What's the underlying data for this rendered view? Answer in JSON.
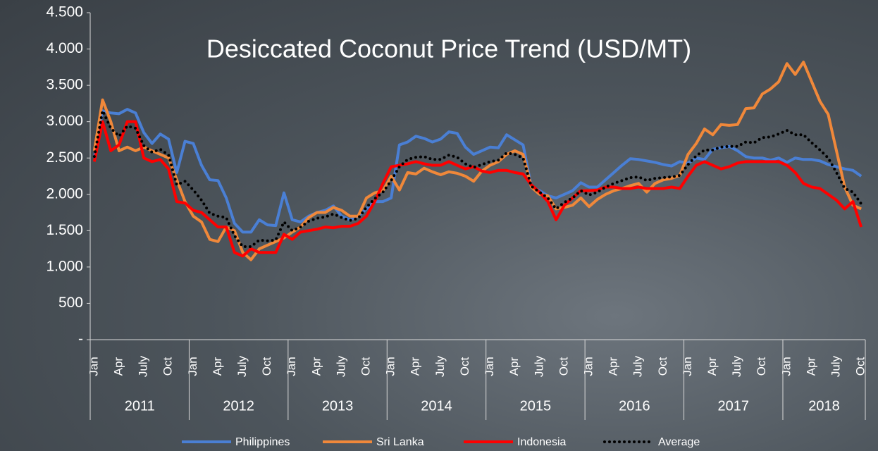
{
  "chart_data": {
    "type": "line",
    "title": "Desiccated Coconut Price Trend (USD/MT)",
    "categories": [
      "Jan",
      null,
      null,
      "Apr",
      null,
      null,
      "July",
      null,
      null,
      "Oct",
      null,
      null,
      "Jan",
      null,
      null,
      "Apr",
      null,
      null,
      "July",
      null,
      null,
      "Oct",
      null,
      null,
      "Jan",
      null,
      null,
      "Apr",
      null,
      null,
      "July",
      null,
      null,
      "Oct",
      null,
      null,
      "Jan",
      null,
      null,
      "Apr",
      null,
      null,
      "July",
      null,
      null,
      "Oct",
      null,
      null,
      "Jan",
      null,
      null,
      "Apr",
      null,
      null,
      "July",
      null,
      null,
      "Oct",
      null,
      null,
      "Jan",
      null,
      null,
      "Apr",
      null,
      null,
      "July",
      null,
      null,
      "Oct",
      null,
      null,
      "Jan",
      null,
      null,
      "Apr",
      null,
      null,
      "July",
      null,
      null,
      "Oct",
      null,
      null,
      "Jan",
      null,
      null,
      "Apr",
      null,
      null,
      "July",
      null,
      null,
      "Oct"
    ],
    "years": [
      "2011",
      "2012",
      "2013",
      "2014",
      "2015",
      "2016",
      "2017",
      "2018"
    ],
    "ylim": [
      0,
      4500
    ],
    "yticks": [
      {
        "value": 0,
        "label": "-"
      },
      {
        "value": 500,
        "label": "500"
      },
      {
        "value": 1000,
        "label": "1.000"
      },
      {
        "value": 1500,
        "label": "1.500"
      },
      {
        "value": 2000,
        "label": "2.000"
      },
      {
        "value": 2500,
        "label": "2.500"
      },
      {
        "value": 3000,
        "label": "3.000"
      },
      {
        "value": 3500,
        "label": "3.500"
      },
      {
        "value": 4000,
        "label": "4.000"
      },
      {
        "value": 4500,
        "label": "4.500"
      }
    ],
    "series": [
      {
        "name": "Philippines",
        "color": "#4a7fd4",
        "style": "solid",
        "values": [
          2500,
          3150,
          3120,
          3110,
          3170,
          3120,
          2850,
          2700,
          2830,
          2760,
          2300,
          2730,
          2700,
          2400,
          2200,
          2190,
          1950,
          1600,
          1480,
          1480,
          1650,
          1580,
          1570,
          2020,
          1650,
          1620,
          1700,
          1750,
          1780,
          1840,
          1700,
          1650,
          1700,
          1800,
          1900,
          1900,
          1950,
          2680,
          2720,
          2800,
          2770,
          2720,
          2760,
          2860,
          2840,
          2650,
          2550,
          2600,
          2650,
          2640,
          2820,
          2750,
          2680,
          2100,
          2050,
          1980,
          1950,
          2000,
          2050,
          2160,
          2100,
          2100,
          2200,
          2300,
          2400,
          2490,
          2480,
          2460,
          2440,
          2410,
          2390,
          2450,
          2430,
          2500,
          2480,
          2620,
          2640,
          2660,
          2600,
          2520,
          2500,
          2500,
          2470,
          2500,
          2440,
          2500,
          2480,
          2480,
          2460,
          2410,
          2380,
          2350,
          2330,
          2250
        ]
      },
      {
        "name": "Sri Lanka",
        "color": "#f0883a",
        "style": "solid",
        "values": [
          2600,
          3300,
          3000,
          2600,
          2650,
          2600,
          2650,
          2600,
          2550,
          2500,
          2200,
          1900,
          1700,
          1620,
          1380,
          1350,
          1550,
          1500,
          1200,
          1100,
          1250,
          1300,
          1350,
          1400,
          1480,
          1550,
          1680,
          1750,
          1750,
          1820,
          1780,
          1700,
          1700,
          1950,
          2020,
          2050,
          2250,
          2060,
          2300,
          2280,
          2360,
          2310,
          2270,
          2310,
          2290,
          2250,
          2180,
          2320,
          2400,
          2450,
          2550,
          2600,
          2550,
          2100,
          2000,
          1980,
          1800,
          1820,
          1850,
          1950,
          1830,
          1930,
          2000,
          2050,
          2080,
          2120,
          2150,
          2030,
          2150,
          2200,
          2220,
          2260,
          2550,
          2700,
          2900,
          2820,
          2960,
          2950,
          2960,
          3180,
          3190,
          3380,
          3450,
          3550,
          3800,
          3650,
          3820,
          3550,
          3280,
          3100,
          2600,
          2100,
          1850,
          1800
        ]
      },
      {
        "name": "Indonesia",
        "color": "#ff0000",
        "style": "solid",
        "values": [
          2450,
          3000,
          2600,
          2680,
          3000,
          3000,
          2500,
          2450,
          2480,
          2350,
          1900,
          1880,
          1780,
          1750,
          1650,
          1550,
          1550,
          1200,
          1150,
          1250,
          1200,
          1200,
          1200,
          1450,
          1380,
          1480,
          1500,
          1520,
          1550,
          1540,
          1560,
          1560,
          1600,
          1700,
          1900,
          2150,
          2380,
          2400,
          2420,
          2450,
          2420,
          2400,
          2400,
          2450,
          2400,
          2350,
          2380,
          2320,
          2300,
          2330,
          2330,
          2300,
          2280,
          2130,
          2030,
          1900,
          1650,
          1850,
          1950,
          2050,
          2050,
          2060,
          2100,
          2100,
          2080,
          2080,
          2100,
          2080,
          2080,
          2080,
          2100,
          2080,
          2250,
          2400,
          2450,
          2400,
          2350,
          2380,
          2430,
          2450,
          2450,
          2450,
          2450,
          2450,
          2400,
          2300,
          2150,
          2100,
          2080,
          2000,
          1920,
          1800,
          1900,
          1550
        ]
      },
      {
        "name": "Average",
        "color": "#000000",
        "style": "dotted",
        "values": [
          2520,
          3150,
          2910,
          2800,
          2940,
          2910,
          2670,
          2580,
          2620,
          2540,
          2130,
          2180,
          2060,
          1920,
          1740,
          1700,
          1680,
          1430,
          1280,
          1280,
          1370,
          1360,
          1370,
          1620,
          1500,
          1550,
          1630,
          1670,
          1690,
          1730,
          1680,
          1640,
          1670,
          1820,
          1940,
          2030,
          2190,
          2380,
          2480,
          2510,
          2520,
          2480,
          2480,
          2540,
          2510,
          2420,
          2370,
          2410,
          2450,
          2470,
          2570,
          2550,
          2500,
          2110,
          2030,
          1950,
          1800,
          1890,
          1950,
          2050,
          1990,
          2030,
          2100,
          2150,
          2190,
          2230,
          2240,
          2190,
          2220,
          2230,
          2240,
          2260,
          2410,
          2530,
          2610,
          2610,
          2650,
          2660,
          2660,
          2720,
          2710,
          2780,
          2790,
          2830,
          2880,
          2820,
          2820,
          2710,
          2610,
          2500,
          2300,
          2080,
          2030,
          1870
        ]
      }
    ]
  }
}
